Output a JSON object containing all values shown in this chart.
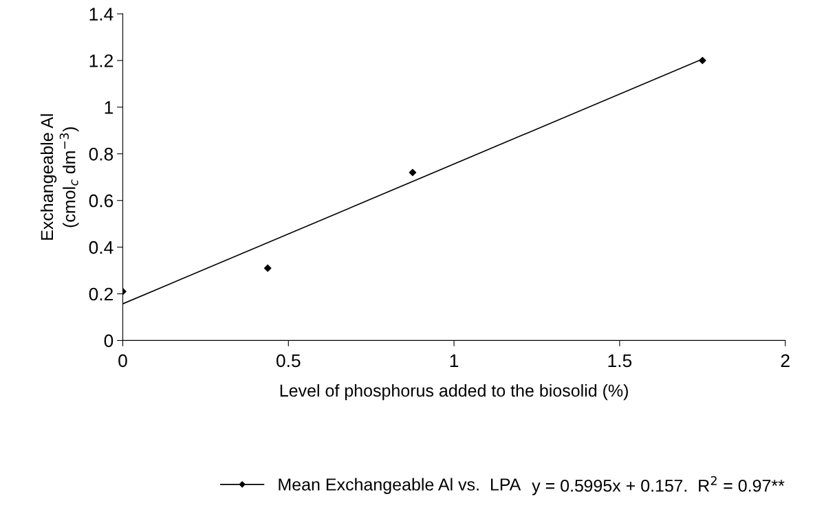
{
  "chart_data": {
    "type": "scatter",
    "xlabel": "Level of phosphorus added to the biosolid (%)",
    "ylabel": "Exchangeable Al\n(cmol$_{c}$ dm$^{−3}$)",
    "xlim": [
      0,
      2
    ],
    "xticks": [
      0,
      0.5,
      1,
      1.5,
      2
    ],
    "ylim": [
      0,
      1.4
    ],
    "yticks": [
      0,
      0.2,
      0.4,
      0.6,
      0.8,
      1,
      1.2,
      1.4
    ],
    "series": [
      {
        "name": "Mean Exchangeable Al vs.  LPA",
        "color": "#000000",
        "marker": "diamond",
        "x": [
          0,
          0.4375,
          0.875,
          1.75
        ],
        "values": [
          0.21,
          0.31,
          0.72,
          1.2
        ]
      },
      {
        "type": "line",
        "color": "#000000",
        "marker": "none",
        "x": [
          0,
          1.75
        ],
        "values": [
          0.157,
          1.206
        ]
      }
    ],
    "annotations": [
      "y = 0.5995x + 0.157.  R$^{2}$ = 0.97**"
    ],
    "grid": false,
    "legend": "bottom"
  }
}
